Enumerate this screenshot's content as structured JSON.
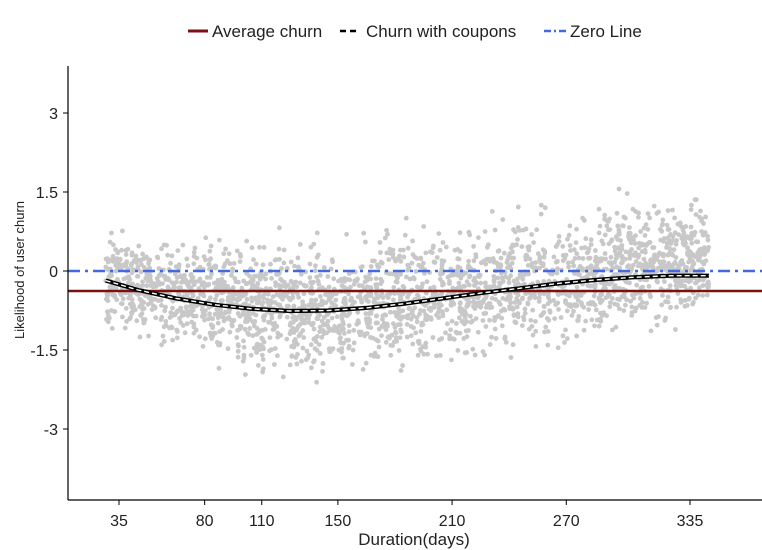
{
  "chart_data": {
    "type": "scatter",
    "title": "",
    "xlabel": "Duration(days)",
    "ylabel": "Likelihood of user churn",
    "x_ticks": [
      35,
      80,
      110,
      150,
      210,
      270,
      335
    ],
    "y_ticks": [
      -3,
      -1.5,
      0,
      1.5,
      3
    ],
    "xlim": [
      10,
      365
    ],
    "ylim": [
      -4.4,
      3.9
    ],
    "legend": [
      {
        "label": "Average churn",
        "color": "#7b1113",
        "style": "solid"
      },
      {
        "label": "Churn with coupons",
        "color": "#000000",
        "style": "dashed"
      },
      {
        "label": "Zero Line",
        "color": "#4169e1",
        "style": "dashdot"
      }
    ],
    "series": [
      {
        "name": "Average churn",
        "type": "hline",
        "y": -0.38
      },
      {
        "name": "Zero Line",
        "type": "hline",
        "y": 0
      },
      {
        "name": "Churn with coupons",
        "type": "line",
        "x": [
          28,
          45,
          65,
          85,
          105,
          125,
          145,
          165,
          185,
          205,
          225,
          245,
          265,
          285,
          305,
          325,
          345
        ],
        "y": [
          -0.18,
          -0.36,
          -0.52,
          -0.64,
          -0.72,
          -0.76,
          -0.75,
          -0.7,
          -0.62,
          -0.52,
          -0.42,
          -0.33,
          -0.24,
          -0.17,
          -0.12,
          -0.09,
          -0.09
        ]
      },
      {
        "name": "Observations",
        "type": "scatter",
        "color": "#c8c8c8",
        "note": "dense cloud of user observations from day 28 to day 345"
      }
    ]
  }
}
